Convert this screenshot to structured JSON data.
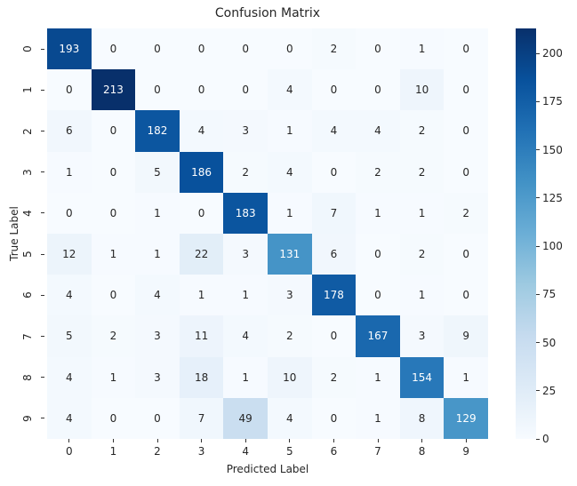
{
  "chart_data": {
    "type": "heatmap",
    "title": "Confusion Matrix",
    "xlabel": "Predicted Label",
    "ylabel": "True Label",
    "x_tick_labels": [
      "0",
      "1",
      "2",
      "3",
      "4",
      "5",
      "6",
      "7",
      "8",
      "9"
    ],
    "y_tick_labels": [
      "0",
      "1",
      "2",
      "3",
      "4",
      "5",
      "6",
      "7",
      "8",
      "9"
    ],
    "matrix": [
      [
        193,
        0,
        0,
        0,
        0,
        0,
        2,
        0,
        1,
        0
      ],
      [
        0,
        213,
        0,
        0,
        0,
        4,
        0,
        0,
        10,
        0
      ],
      [
        6,
        0,
        182,
        4,
        3,
        1,
        4,
        4,
        2,
        0
      ],
      [
        1,
        0,
        5,
        186,
        2,
        4,
        0,
        2,
        2,
        0
      ],
      [
        0,
        0,
        1,
        0,
        183,
        1,
        7,
        1,
        1,
        2
      ],
      [
        12,
        1,
        1,
        22,
        3,
        131,
        6,
        0,
        2,
        0
      ],
      [
        4,
        0,
        4,
        1,
        1,
        3,
        178,
        0,
        1,
        0
      ],
      [
        5,
        2,
        3,
        11,
        4,
        2,
        0,
        167,
        3,
        9
      ],
      [
        4,
        1,
        3,
        18,
        1,
        10,
        2,
        1,
        154,
        1
      ],
      [
        4,
        0,
        0,
        7,
        49,
        4,
        0,
        1,
        8,
        129
      ]
    ],
    "colormap": "Blues",
    "colorbar": {
      "min": 0,
      "max": 213,
      "ticks": [
        0,
        25,
        50,
        75,
        100,
        125,
        150,
        175,
        200
      ]
    },
    "annotations": true
  }
}
